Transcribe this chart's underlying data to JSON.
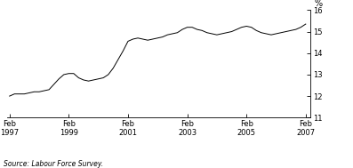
{
  "title": "",
  "ylabel": "%",
  "source": "Source: Labour Force Survey.",
  "ylim": [
    11,
    16
  ],
  "yticks": [
    11,
    12,
    13,
    14,
    15,
    16
  ],
  "line_color": "#000000",
  "background_color": "#ffffff",
  "x_tick_years": [
    1997,
    1999,
    2001,
    2003,
    2005,
    2007
  ],
  "data_points": [
    [
      1997,
      2,
      12.0
    ],
    [
      1997,
      4,
      12.1
    ],
    [
      1997,
      6,
      12.1
    ],
    [
      1997,
      8,
      12.1
    ],
    [
      1997,
      10,
      12.15
    ],
    [
      1997,
      12,
      12.2
    ],
    [
      1998,
      2,
      12.2
    ],
    [
      1998,
      4,
      12.25
    ],
    [
      1998,
      6,
      12.3
    ],
    [
      1998,
      8,
      12.55
    ],
    [
      1998,
      10,
      12.8
    ],
    [
      1998,
      12,
      13.0
    ],
    [
      1999,
      2,
      13.05
    ],
    [
      1999,
      4,
      13.05
    ],
    [
      1999,
      6,
      12.85
    ],
    [
      1999,
      8,
      12.75
    ],
    [
      1999,
      10,
      12.7
    ],
    [
      1999,
      12,
      12.75
    ],
    [
      2000,
      2,
      12.8
    ],
    [
      2000,
      4,
      12.85
    ],
    [
      2000,
      6,
      13.0
    ],
    [
      2000,
      8,
      13.3
    ],
    [
      2000,
      10,
      13.7
    ],
    [
      2000,
      12,
      14.1
    ],
    [
      2001,
      2,
      14.55
    ],
    [
      2001,
      4,
      14.65
    ],
    [
      2001,
      6,
      14.7
    ],
    [
      2001,
      8,
      14.65
    ],
    [
      2001,
      10,
      14.6
    ],
    [
      2001,
      12,
      14.65
    ],
    [
      2002,
      2,
      14.7
    ],
    [
      2002,
      4,
      14.75
    ],
    [
      2002,
      6,
      14.85
    ],
    [
      2002,
      8,
      14.9
    ],
    [
      2002,
      10,
      14.95
    ],
    [
      2002,
      12,
      15.1
    ],
    [
      2003,
      2,
      15.2
    ],
    [
      2003,
      4,
      15.2
    ],
    [
      2003,
      6,
      15.1
    ],
    [
      2003,
      8,
      15.05
    ],
    [
      2003,
      10,
      14.95
    ],
    [
      2003,
      12,
      14.9
    ],
    [
      2004,
      2,
      14.85
    ],
    [
      2004,
      4,
      14.9
    ],
    [
      2004,
      6,
      14.95
    ],
    [
      2004,
      8,
      15.0
    ],
    [
      2004,
      10,
      15.1
    ],
    [
      2004,
      12,
      15.2
    ],
    [
      2005,
      2,
      15.25
    ],
    [
      2005,
      4,
      15.2
    ],
    [
      2005,
      6,
      15.05
    ],
    [
      2005,
      8,
      14.95
    ],
    [
      2005,
      10,
      14.9
    ],
    [
      2005,
      12,
      14.85
    ],
    [
      2006,
      2,
      14.9
    ],
    [
      2006,
      4,
      14.95
    ],
    [
      2006,
      6,
      15.0
    ],
    [
      2006,
      8,
      15.05
    ],
    [
      2006,
      10,
      15.1
    ],
    [
      2006,
      12,
      15.2
    ],
    [
      2007,
      2,
      15.35
    ]
  ]
}
